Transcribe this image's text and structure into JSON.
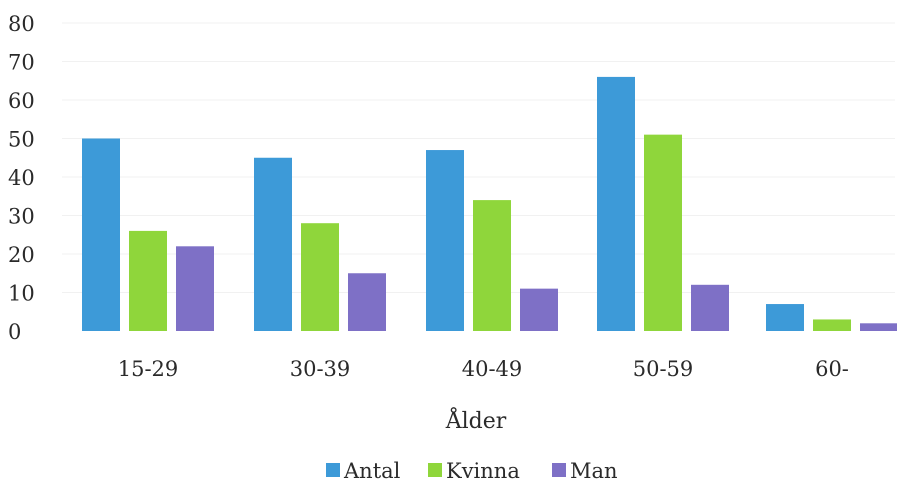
{
  "chart_data": {
    "type": "bar",
    "xlabel": "Ålder",
    "ylabel": "",
    "ylim": [
      0,
      80
    ],
    "yticks": [
      0,
      10,
      20,
      30,
      40,
      50,
      60,
      70,
      80
    ],
    "categories": [
      "15-29",
      "30-39",
      "40-49",
      "50-59",
      "60-"
    ],
    "series": [
      {
        "name": "Antal",
        "color": "#3d9ad8",
        "values": [
          50,
          45,
          47,
          66,
          7
        ]
      },
      {
        "name": "Kvinna",
        "color": "#8fd63b",
        "values": [
          26,
          28,
          34,
          51,
          3
        ]
      },
      {
        "name": "Man",
        "color": "#7e70c6",
        "values": [
          22,
          15,
          11,
          12,
          2
        ]
      }
    ],
    "grid": true,
    "legend": "bottom-center"
  }
}
